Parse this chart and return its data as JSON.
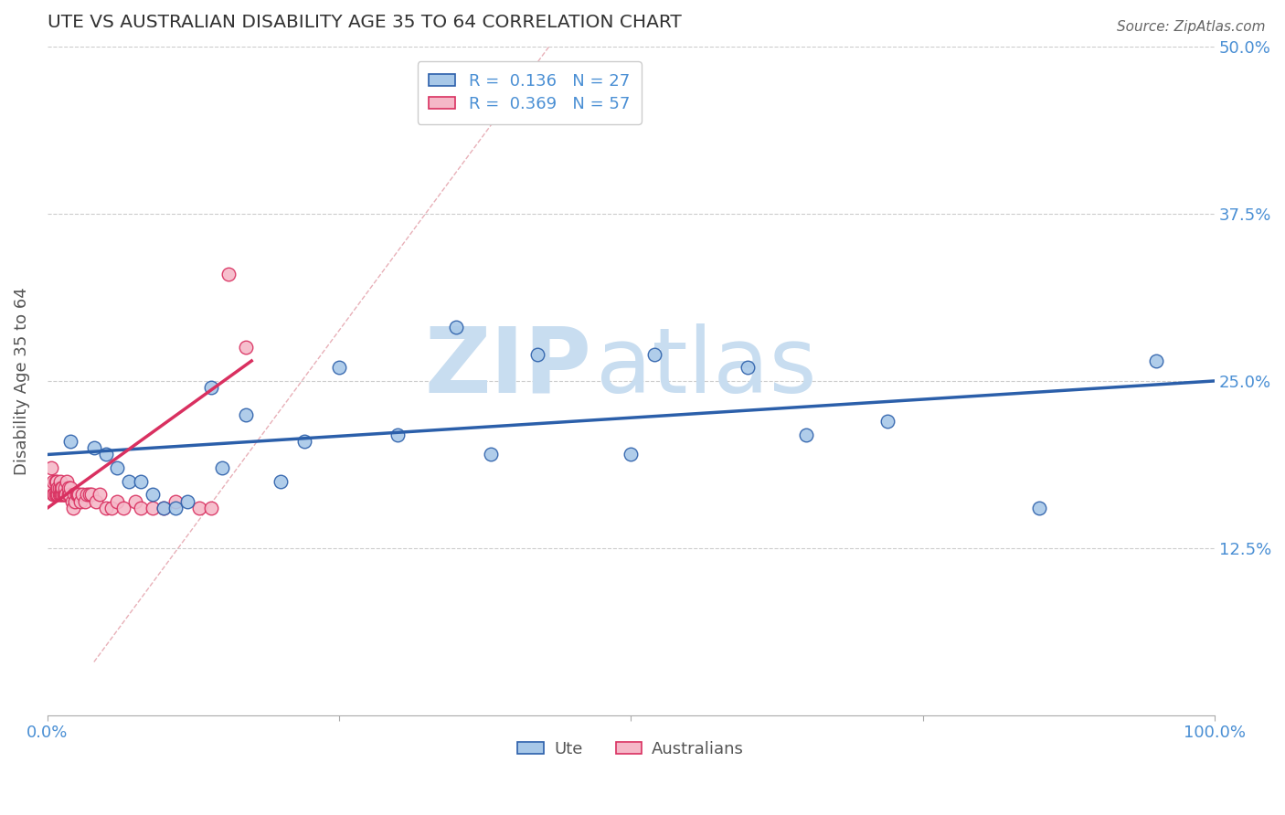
{
  "title": "UTE VS AUSTRALIAN DISABILITY AGE 35 TO 64 CORRELATION CHART",
  "source": "Source: ZipAtlas.com",
  "ylabel_label": "Disability Age 35 to 64",
  "xlim": [
    0,
    1.0
  ],
  "ylim": [
    0,
    0.5
  ],
  "legend_R1": "0.136",
  "legend_N1": "27",
  "legend_R2": "0.369",
  "legend_N2": "57",
  "blue_color": "#a8c8e8",
  "pink_color": "#f5b8c8",
  "line_blue": "#2b5faa",
  "line_pink": "#d93060",
  "diag_color": "#e8b0b8",
  "title_color": "#333333",
  "tick_label_color": "#4a8fd4",
  "grid_color": "#cccccc",
  "watermark_color": "#d8e8f4",
  "ute_x": [
    0.02,
    0.04,
    0.05,
    0.06,
    0.07,
    0.08,
    0.09,
    0.1,
    0.11,
    0.12,
    0.14,
    0.15,
    0.17,
    0.2,
    0.22,
    0.25,
    0.3,
    0.35,
    0.38,
    0.42,
    0.5,
    0.52,
    0.6,
    0.65,
    0.72,
    0.85,
    0.95
  ],
  "ute_y": [
    0.205,
    0.2,
    0.195,
    0.185,
    0.175,
    0.175,
    0.165,
    0.155,
    0.155,
    0.16,
    0.245,
    0.185,
    0.225,
    0.175,
    0.205,
    0.26,
    0.21,
    0.29,
    0.195,
    0.27,
    0.195,
    0.27,
    0.26,
    0.21,
    0.22,
    0.155,
    0.265
  ],
  "aus_x": [
    0.003,
    0.004,
    0.005,
    0.005,
    0.006,
    0.007,
    0.007,
    0.008,
    0.008,
    0.009,
    0.009,
    0.01,
    0.01,
    0.011,
    0.011,
    0.012,
    0.012,
    0.013,
    0.013,
    0.014,
    0.014,
    0.015,
    0.015,
    0.016,
    0.017,
    0.018,
    0.018,
    0.019,
    0.02,
    0.021,
    0.022,
    0.023,
    0.024,
    0.025,
    0.026,
    0.027,
    0.028,
    0.03,
    0.032,
    0.034,
    0.036,
    0.038,
    0.042,
    0.045,
    0.05,
    0.055,
    0.06,
    0.065,
    0.075,
    0.08,
    0.09,
    0.1,
    0.11,
    0.13,
    0.14,
    0.155,
    0.17
  ],
  "aus_y": [
    0.185,
    0.17,
    0.175,
    0.165,
    0.165,
    0.175,
    0.165,
    0.175,
    0.165,
    0.165,
    0.17,
    0.165,
    0.17,
    0.165,
    0.175,
    0.165,
    0.17,
    0.165,
    0.17,
    0.165,
    0.165,
    0.165,
    0.17,
    0.165,
    0.175,
    0.165,
    0.17,
    0.165,
    0.17,
    0.16,
    0.155,
    0.165,
    0.16,
    0.165,
    0.165,
    0.165,
    0.16,
    0.165,
    0.16,
    0.165,
    0.165,
    0.165,
    0.16,
    0.165,
    0.155,
    0.155,
    0.16,
    0.155,
    0.16,
    0.155,
    0.155,
    0.155,
    0.16,
    0.155,
    0.155,
    0.33,
    0.275
  ],
  "blue_line_x0": 0.0,
  "blue_line_y0": 0.195,
  "blue_line_x1": 1.0,
  "blue_line_y1": 0.25,
  "pink_line_x0": 0.0,
  "pink_line_y0": 0.155,
  "pink_line_x1": 0.175,
  "pink_line_y1": 0.265,
  "diag_line_x0": 0.04,
  "diag_line_y0": 0.04,
  "diag_line_x1": 0.43,
  "diag_line_y1": 0.5
}
